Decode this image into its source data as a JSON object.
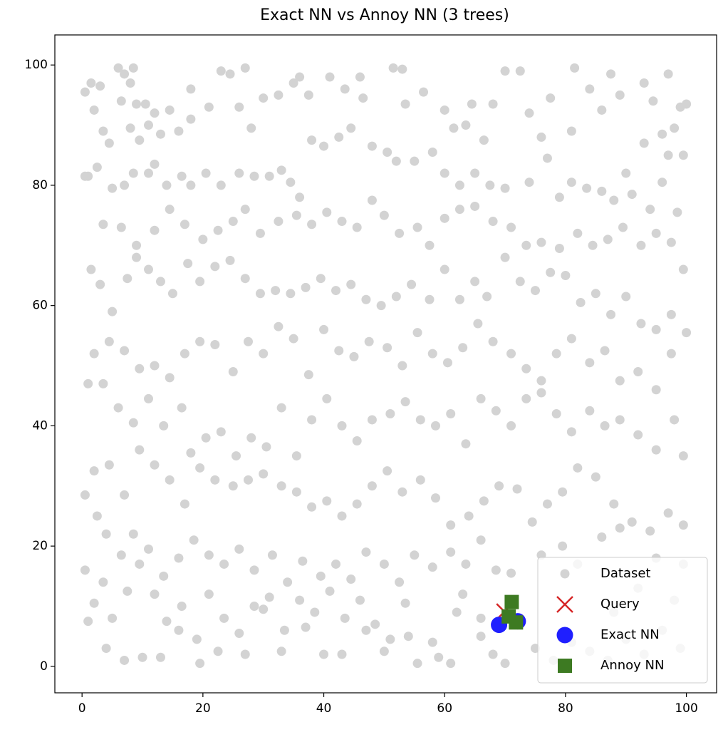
{
  "chart_data": {
    "type": "scatter",
    "title": "Exact NN vs Annoy NN (3 trees)",
    "xlim": [
      -4.5,
      105
    ],
    "ylim": [
      -4.4,
      105
    ],
    "xticks": [
      0,
      20,
      40,
      60,
      80,
      100
    ],
    "yticks": [
      0,
      20,
      40,
      60,
      80,
      100
    ],
    "grid": false,
    "legend": "lower right",
    "series": [
      {
        "name": "Dataset",
        "color": "#d3d3d3",
        "marker": "o",
        "x": [
          0.5,
          1.5,
          3,
          2,
          3.5,
          4.5,
          1,
          2.5,
          6,
          7,
          8.5,
          8,
          6.5,
          9,
          10.5,
          12,
          11,
          9.5,
          8,
          13,
          14.5,
          16,
          18,
          18,
          21,
          23,
          24.5,
          27,
          26,
          28,
          30,
          32.5,
          35,
          36,
          37.5,
          41,
          43.5,
          46,
          46.5,
          51.5,
          53,
          53.5,
          56.5,
          60,
          61.5,
          63.5,
          64.5,
          66.5,
          68,
          70,
          72.5,
          74,
          76,
          77.5,
          81,
          81.5,
          84,
          86,
          87.5,
          89,
          93,
          94.5,
          97,
          99,
          100,
          98,
          96,
          93,
          90,
          97,
          99.5,
          96,
          98.5,
          0.5,
          5,
          7,
          8.5,
          11,
          12,
          14,
          16.5,
          18,
          20.5,
          23,
          26,
          28.5,
          31,
          33,
          34.5,
          36,
          38,
          40,
          42.5,
          44.5,
          48,
          50.5,
          52,
          55,
          58,
          60,
          62.5,
          65,
          67.5,
          70,
          74,
          77,
          79,
          81,
          83.5,
          86,
          88,
          91,
          94,
          3.5,
          6.5,
          9,
          12,
          14.5,
          17,
          20,
          22.5,
          25,
          27,
          29.5,
          32.5,
          35.5,
          38,
          40.5,
          43,
          45.5,
          48,
          50,
          52.5,
          55.5,
          57.5,
          60,
          62.5,
          65,
          68,
          71,
          73.5,
          76,
          79,
          82,
          84.5,
          87,
          89.5,
          92.5,
          95,
          97.5,
          1.5,
          3,
          5,
          7.5,
          9,
          11,
          13,
          15,
          17.5,
          19.5,
          22,
          24.5,
          27,
          29.5,
          32,
          34.5,
          37,
          39.5,
          42,
          44.5,
          47,
          49.5,
          52,
          54.5,
          57.5,
          60,
          62.5,
          65,
          67,
          70,
          72.5,
          75,
          77.5,
          80,
          82.5,
          85,
          87.5,
          90,
          92.5,
          95,
          97.5,
          100,
          99.5,
          2,
          4.5,
          7,
          9.5,
          12,
          14.5,
          17,
          19.5,
          22,
          25,
          27.5,
          30,
          32.5,
          35,
          37.5,
          40,
          42.5,
          45,
          47.5,
          50.5,
          53,
          55.5,
          58,
          60.5,
          63,
          65.5,
          68,
          71,
          73.5,
          76,
          78.5,
          81,
          84,
          86.5,
          89,
          92,
          95,
          97.5,
          1,
          3.5,
          6,
          8.5,
          11,
          13.5,
          16.5,
          18,
          20.5,
          23,
          25.5,
          28,
          30.5,
          33,
          35.5,
          38,
          40.5,
          43,
          45.5,
          48,
          51,
          53.5,
          56,
          58.5,
          61,
          63.5,
          66,
          68.5,
          71,
          73.5,
          76,
          78.5,
          81,
          84,
          86.5,
          89,
          92,
          95,
          98,
          99.5,
          2,
          4.5,
          7,
          9.5,
          12,
          14.5,
          17,
          19.5,
          22,
          25,
          27.5,
          30,
          33,
          35.5,
          38,
          40.5,
          43,
          45.5,
          48,
          50.5,
          53,
          56,
          58.5,
          61,
          64,
          66.5,
          69,
          72,
          74.5,
          77,
          79.5,
          82,
          85,
          88,
          91,
          94,
          97,
          99.5,
          0.5,
          2.5,
          4,
          6.5,
          8.5,
          11,
          13.5,
          16,
          18.5,
          21,
          23.5,
          26,
          28.5,
          31.5,
          34,
          36.5,
          39.5,
          42,
          44.5,
          47,
          50,
          52.5,
          55,
          58,
          61,
          63.5,
          66,
          68.5,
          71,
          76,
          79.5,
          82,
          86,
          89,
          0.5,
          2,
          3.5,
          5,
          7.5,
          9.5,
          12,
          14,
          16.5,
          19,
          21,
          23.5,
          26,
          28.5,
          31,
          33.5,
          36,
          38.5,
          41,
          43.5,
          46,
          48.5,
          51,
          53.5,
          55.5,
          58,
          61,
          63,
          66,
          68,
          70,
          75,
          78,
          81,
          84,
          87,
          90,
          93,
          96,
          99,
          1,
          4,
          7,
          10,
          13,
          16,
          19.5,
          22.5,
          27,
          30,
          33,
          37,
          40,
          43,
          47,
          50,
          54,
          59,
          62,
          66,
          92,
          95,
          98,
          99.5,
          88
        ],
        "values": [
          95.5,
          97,
          96.5,
          92.5,
          89,
          87,
          81.5,
          83,
          99.5,
          98.5,
          99.5,
          97,
          94,
          93.5,
          93.5,
          92,
          90,
          87.5,
          89.5,
          88.5,
          92.5,
          89,
          91,
          96,
          93,
          99,
          98.5,
          99.5,
          93,
          89.5,
          94.5,
          95,
          97,
          98,
          95,
          98,
          96,
          98,
          94.5,
          99.5,
          99.3,
          93.5,
          95.5,
          92.5,
          89.5,
          90,
          93.5,
          87.5,
          93.5,
          99,
          99,
          92,
          88,
          94.5,
          89,
          99.5,
          96,
          92.5,
          98.5,
          95,
          97,
          94,
          98.5,
          93,
          93.5,
          89.5,
          88.5,
          87,
          82,
          85,
          85,
          80.5,
          75.5,
          81.5,
          79.5,
          80,
          82,
          82,
          83.5,
          80,
          81.5,
          80,
          82,
          80,
          82,
          81.5,
          81.5,
          82.5,
          80.5,
          78,
          87.5,
          86.5,
          88,
          89.5,
          86.5,
          85.5,
          84,
          84,
          85.5,
          82,
          80,
          82,
          80,
          79.5,
          80.5,
          84.5,
          78,
          80.5,
          79.5,
          79,
          77.5,
          78.5,
          76,
          73.5,
          73,
          70,
          72.5,
          76,
          73.5,
          71,
          72.5,
          74,
          76,
          72,
          74,
          75,
          73.5,
          75.5,
          74,
          73,
          77.5,
          75,
          72,
          73,
          70,
          74.5,
          76,
          76.5,
          74,
          73,
          70,
          70.5,
          69.5,
          72,
          70,
          71,
          73,
          70,
          72,
          70.5,
          66,
          63.5,
          59,
          64.5,
          68,
          66,
          64,
          62,
          67,
          64,
          66.5,
          67.5,
          64.5,
          62,
          62.5,
          62,
          63,
          64.5,
          62.5,
          63.5,
          61,
          60,
          61.5,
          63.5,
          61,
          66,
          61,
          64,
          61.5,
          68,
          64,
          62.5,
          65.5,
          65,
          60.5,
          62,
          58.5,
          61.5,
          57,
          56,
          58.5,
          55.5,
          66,
          52,
          54,
          52.5,
          49.5,
          50,
          48,
          52,
          54,
          53.5,
          49,
          54,
          52,
          56.5,
          54.5,
          48.5,
          56,
          52.5,
          51.5,
          54,
          53,
          50,
          55.5,
          52,
          50.5,
          53,
          57,
          54,
          52,
          49.5,
          47.5,
          52,
          54.5,
          50.5,
          52.5,
          47.5,
          49,
          46,
          52,
          47,
          47,
          43,
          40.5,
          44.5,
          40,
          43,
          35.5,
          38,
          39,
          35,
          38,
          36.5,
          43,
          35,
          41,
          44.5,
          40,
          37.5,
          41,
          42,
          44,
          41,
          40,
          42,
          37,
          44.5,
          42.5,
          40,
          44.5,
          45.5,
          42,
          39,
          42.5,
          40,
          41,
          38.5,
          36,
          41,
          35,
          32.5,
          33.5,
          28.5,
          36,
          33.5,
          31,
          27,
          33,
          31,
          30,
          31,
          32,
          30,
          29,
          26.5,
          27.5,
          25,
          27,
          30,
          32.5,
          29,
          31,
          28,
          23.5,
          25,
          27.5,
          30,
          29.5,
          24,
          27,
          29,
          33,
          31.5,
          27,
          24,
          22.5,
          25.5,
          23.5,
          28.5,
          25,
          22,
          18.5,
          22,
          19.5,
          15,
          18,
          21,
          18.5,
          17,
          19.5,
          16,
          18.5,
          14,
          17.5,
          15,
          17,
          14.5,
          19,
          17,
          14,
          18.5,
          16.5,
          19,
          17,
          21,
          16,
          15.5,
          18.5,
          20,
          17,
          21.5,
          23,
          16,
          10.5,
          14,
          8,
          12.5,
          17,
          12,
          7.5,
          10,
          4.5,
          12,
          8,
          5.5,
          10,
          11.5,
          6,
          11,
          9,
          12.5,
          8,
          11,
          7,
          4.5,
          10.5,
          0.5,
          4,
          0.5,
          12,
          8,
          2,
          0.5,
          3,
          1,
          4,
          2.5,
          1,
          4.5,
          2,
          6,
          3,
          7.5,
          3,
          1,
          1.5,
          1.5,
          6,
          0.5,
          2.5,
          2,
          9.5,
          2.5,
          6.5,
          2,
          2,
          6,
          2.5,
          5,
          1.5,
          9,
          5,
          13,
          18,
          11,
          17,
          9
        ]
      },
      {
        "name": "Query",
        "color": "#d62728",
        "marker": "x",
        "x": [
          69.9
        ],
        "values": [
          9.1
        ]
      },
      {
        "name": "Exact NN",
        "color": "#1f1fff",
        "marker": "o-large",
        "x": [
          69.0,
          72.1
        ],
        "values": [
          6.9,
          7.5
        ]
      },
      {
        "name": "Annoy NN",
        "color": "#3d7a22",
        "marker": "s",
        "x": [
          71.1,
          70.6,
          71.8
        ],
        "values": [
          10.7,
          8.3,
          7.3
        ]
      }
    ]
  }
}
